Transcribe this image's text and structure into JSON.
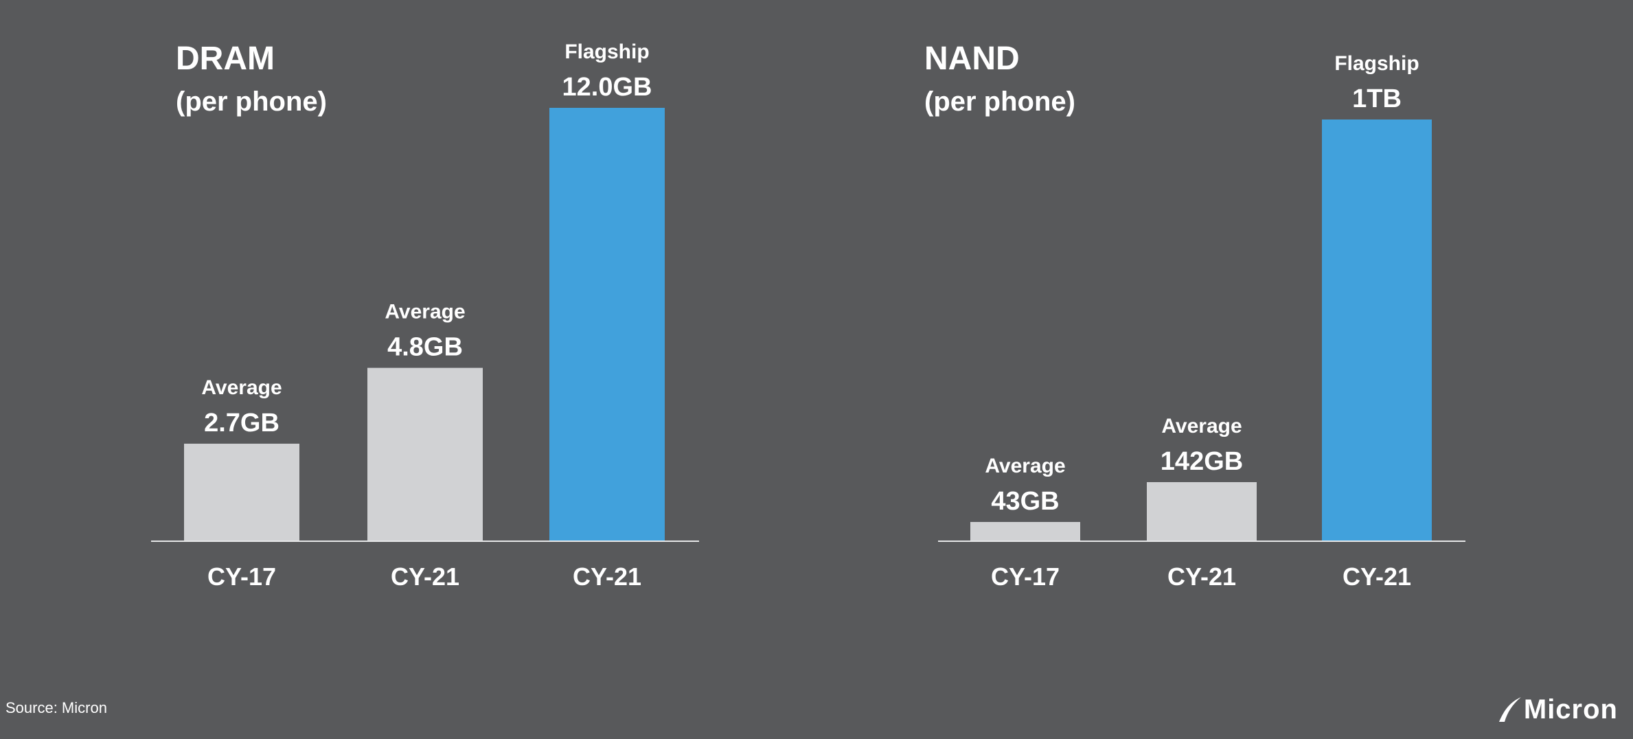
{
  "panels": [
    {
      "title": "DRAM",
      "subtitle": "(per phone)"
    },
    {
      "title": "NAND",
      "subtitle": "(per phone)"
    }
  ],
  "source": "Source: Micron",
  "logo": {
    "text": "Micron"
  },
  "colors": {
    "background": "#58595b",
    "average_bar": "#d1d2d4",
    "flagship_bar": "#41a1dc",
    "text": "#ffffff"
  },
  "chart_data": [
    {
      "type": "bar",
      "title": "DRAM",
      "subtitle": "(per phone)",
      "categories": [
        "CY-17",
        "CY-21",
        "CY-21"
      ],
      "values": [
        2.7,
        4.8,
        12.0
      ],
      "unit": "GB",
      "bar_captions": [
        "Average",
        "Average",
        "Flagship"
      ],
      "bar_value_labels": [
        "2.7GB",
        "4.8GB",
        "12.0GB"
      ],
      "bar_colors": [
        "#d1d2d4",
        "#d1d2d4",
        "#41a1dc"
      ],
      "ylim": [
        0,
        12.0
      ],
      "grid": false
    },
    {
      "type": "bar",
      "title": "NAND",
      "subtitle": "(per phone)",
      "categories": [
        "CY-17",
        "CY-21",
        "CY-21"
      ],
      "values": [
        43,
        142,
        1000
      ],
      "unit": "GB",
      "bar_captions": [
        "Average",
        "Average",
        "Flagship"
      ],
      "bar_value_labels": [
        "43GB",
        "142GB",
        "1TB"
      ],
      "bar_colors": [
        "#d1d2d4",
        "#d1d2d4",
        "#41a1dc"
      ],
      "ylim": [
        0,
        1000
      ],
      "grid": false
    }
  ]
}
